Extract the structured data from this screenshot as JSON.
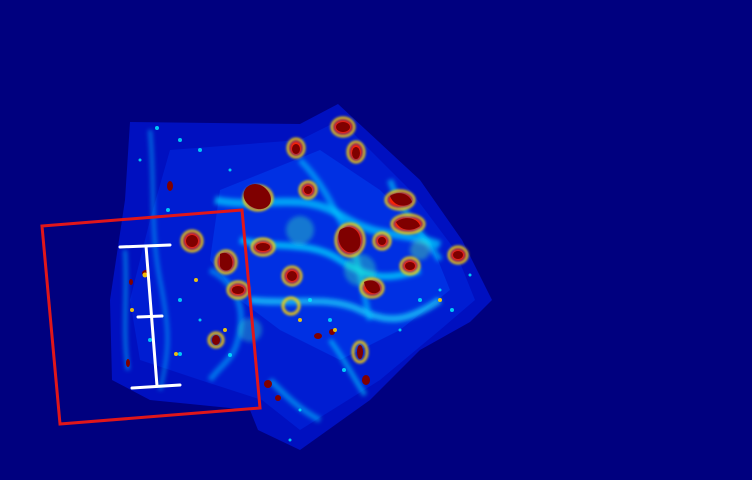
{
  "image": {
    "kind": "heatmap-overlay",
    "colormap": "jet",
    "colors": {
      "background": "#00007f",
      "low": "#0000c8",
      "mid_low": "#0050ff",
      "mid": "#00d8ff",
      "mid_high": "#7fff7f",
      "high": "#ffd000",
      "very_high": "#ff3000",
      "peak": "#7f0000",
      "selection_box": "#e0161a",
      "scale_marker": "#ffffff"
    }
  }
}
